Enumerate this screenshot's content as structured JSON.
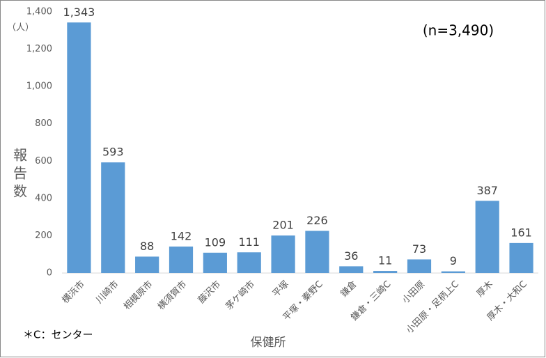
{
  "chart_data": {
    "type": "bar",
    "y_unit": "（人）",
    "annotation": "(n=3,490)",
    "y_label": "報告数",
    "x_label": "保健所",
    "footnote": "＊C：センター",
    "categories": [
      "横浜市",
      "川崎市",
      "相模原市",
      "横須賀市",
      "藤沢市",
      "茅ケ崎市",
      "平塚",
      "平塚・秦野C",
      "鎌倉",
      "鎌倉・三崎C",
      "小田原",
      "小田原・足柄上C",
      "厚木",
      "厚木・大和C"
    ],
    "values": [
      1343,
      593,
      88,
      142,
      109,
      111,
      201,
      226,
      36,
      11,
      73,
      9,
      387,
      161
    ],
    "value_labels": [
      "1,343",
      "593",
      "88",
      "142",
      "109",
      "111",
      "201",
      "226",
      "36",
      "11",
      "73",
      "9",
      "387",
      "161"
    ],
    "color": "#5b9bd5",
    "ylim": [
      0,
      1400
    ],
    "yticks": [
      0,
      200,
      400,
      600,
      800,
      {
        "value": 1000,
        "label": "1,000"
      },
      {
        "value": 1200,
        "label": "1,200"
      },
      {
        "value": 1400,
        "label": "1,400"
      }
    ],
    "grid": false
  }
}
